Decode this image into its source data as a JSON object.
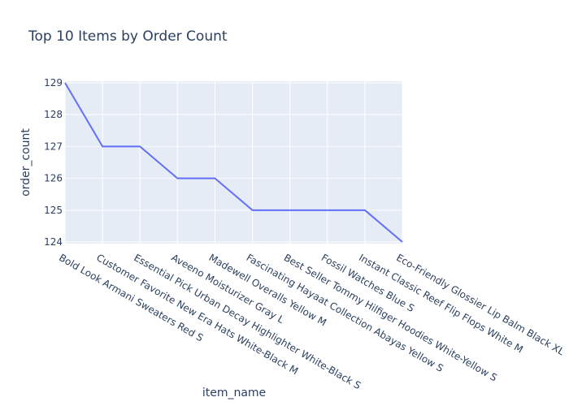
{
  "chart_data": {
    "type": "line",
    "title": "Top 10 Items by Order Count",
    "xlabel": "item_name",
    "ylabel": "order_count",
    "categories": [
      "Bold Look Armani Sweaters Red S",
      "Customer Favorite New Era Hats White-Black M",
      "Essential Pick Urban Decay Highlighter White-Black S",
      "Aveeno Moisturizer Gray L",
      "Madewell Overalls Yellow M",
      "Fascinating Hayaat Collection Abayas Yellow S",
      "Best Seller Tommy Hilfiger Hoodies White-Yellow S",
      "Fossil Watches Blue S",
      "Instant Classic Reef Flip Flops White M",
      "Eco-Friendly Glossier Lip Balm Black XL"
    ],
    "series": [
      {
        "values": [
          129,
          127,
          127,
          126,
          126,
          125,
          125,
          125,
          125,
          124
        ]
      }
    ],
    "yticks": [
      124,
      125,
      126,
      127,
      128,
      129
    ],
    "ylim": [
      123.95,
      129.05
    ],
    "grid": true,
    "colors": {
      "line": "#636efa",
      "plot_bg": "#e5ecf6",
      "grid": "#ffffff",
      "text": "#2a3f5f"
    }
  }
}
